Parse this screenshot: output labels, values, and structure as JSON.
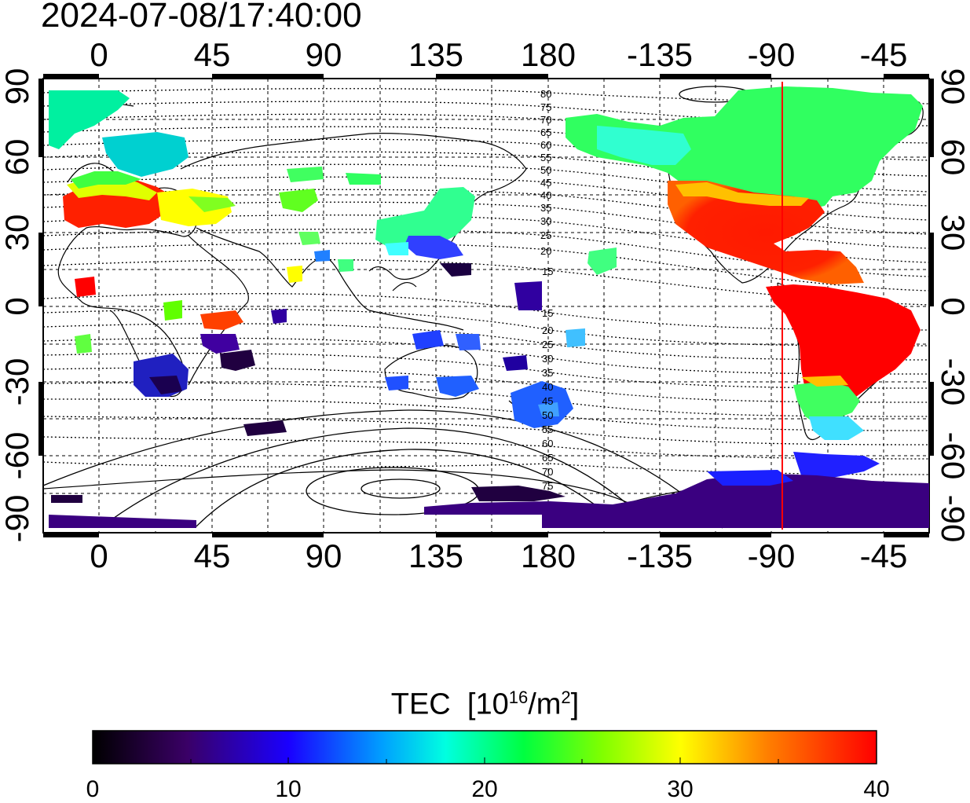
{
  "timestamp": "2024-07-08/17:40:00",
  "lon_ticks": [
    "0",
    "45",
    "90",
    "135",
    "180",
    "-135",
    "-90",
    "-45"
  ],
  "lat_ticks": [
    "90",
    "60",
    "30",
    "0",
    "-30",
    "-60",
    "-90"
  ],
  "contour_labels_north": [
    "80",
    "75",
    "70",
    "65",
    "60",
    "55",
    "50",
    "45",
    "40",
    "35",
    "30",
    "25",
    "20",
    "15"
  ],
  "contour_labels_south": [
    "15",
    "20",
    "25",
    "30",
    "35",
    "40",
    "45",
    "50",
    "55",
    "60",
    "65",
    "70",
    "75"
  ],
  "colorbar": {
    "title": "TEC",
    "unit_base": "10",
    "unit_exp": "16",
    "unit_rest": "/m",
    "unit_exp2": "2",
    "min_label": "0",
    "mid1_label": "10",
    "mid2_label": "20",
    "mid3_label": "30",
    "max_label": "40"
  },
  "colors": {
    "terminator": "#ff0000",
    "palette": [
      "#000000",
      "#3a0066",
      "#1a00ff",
      "#00a0ff",
      "#00ffe0",
      "#00ff40",
      "#80ff00",
      "#ffff00",
      "#ff8000",
      "#ff0000"
    ]
  }
}
